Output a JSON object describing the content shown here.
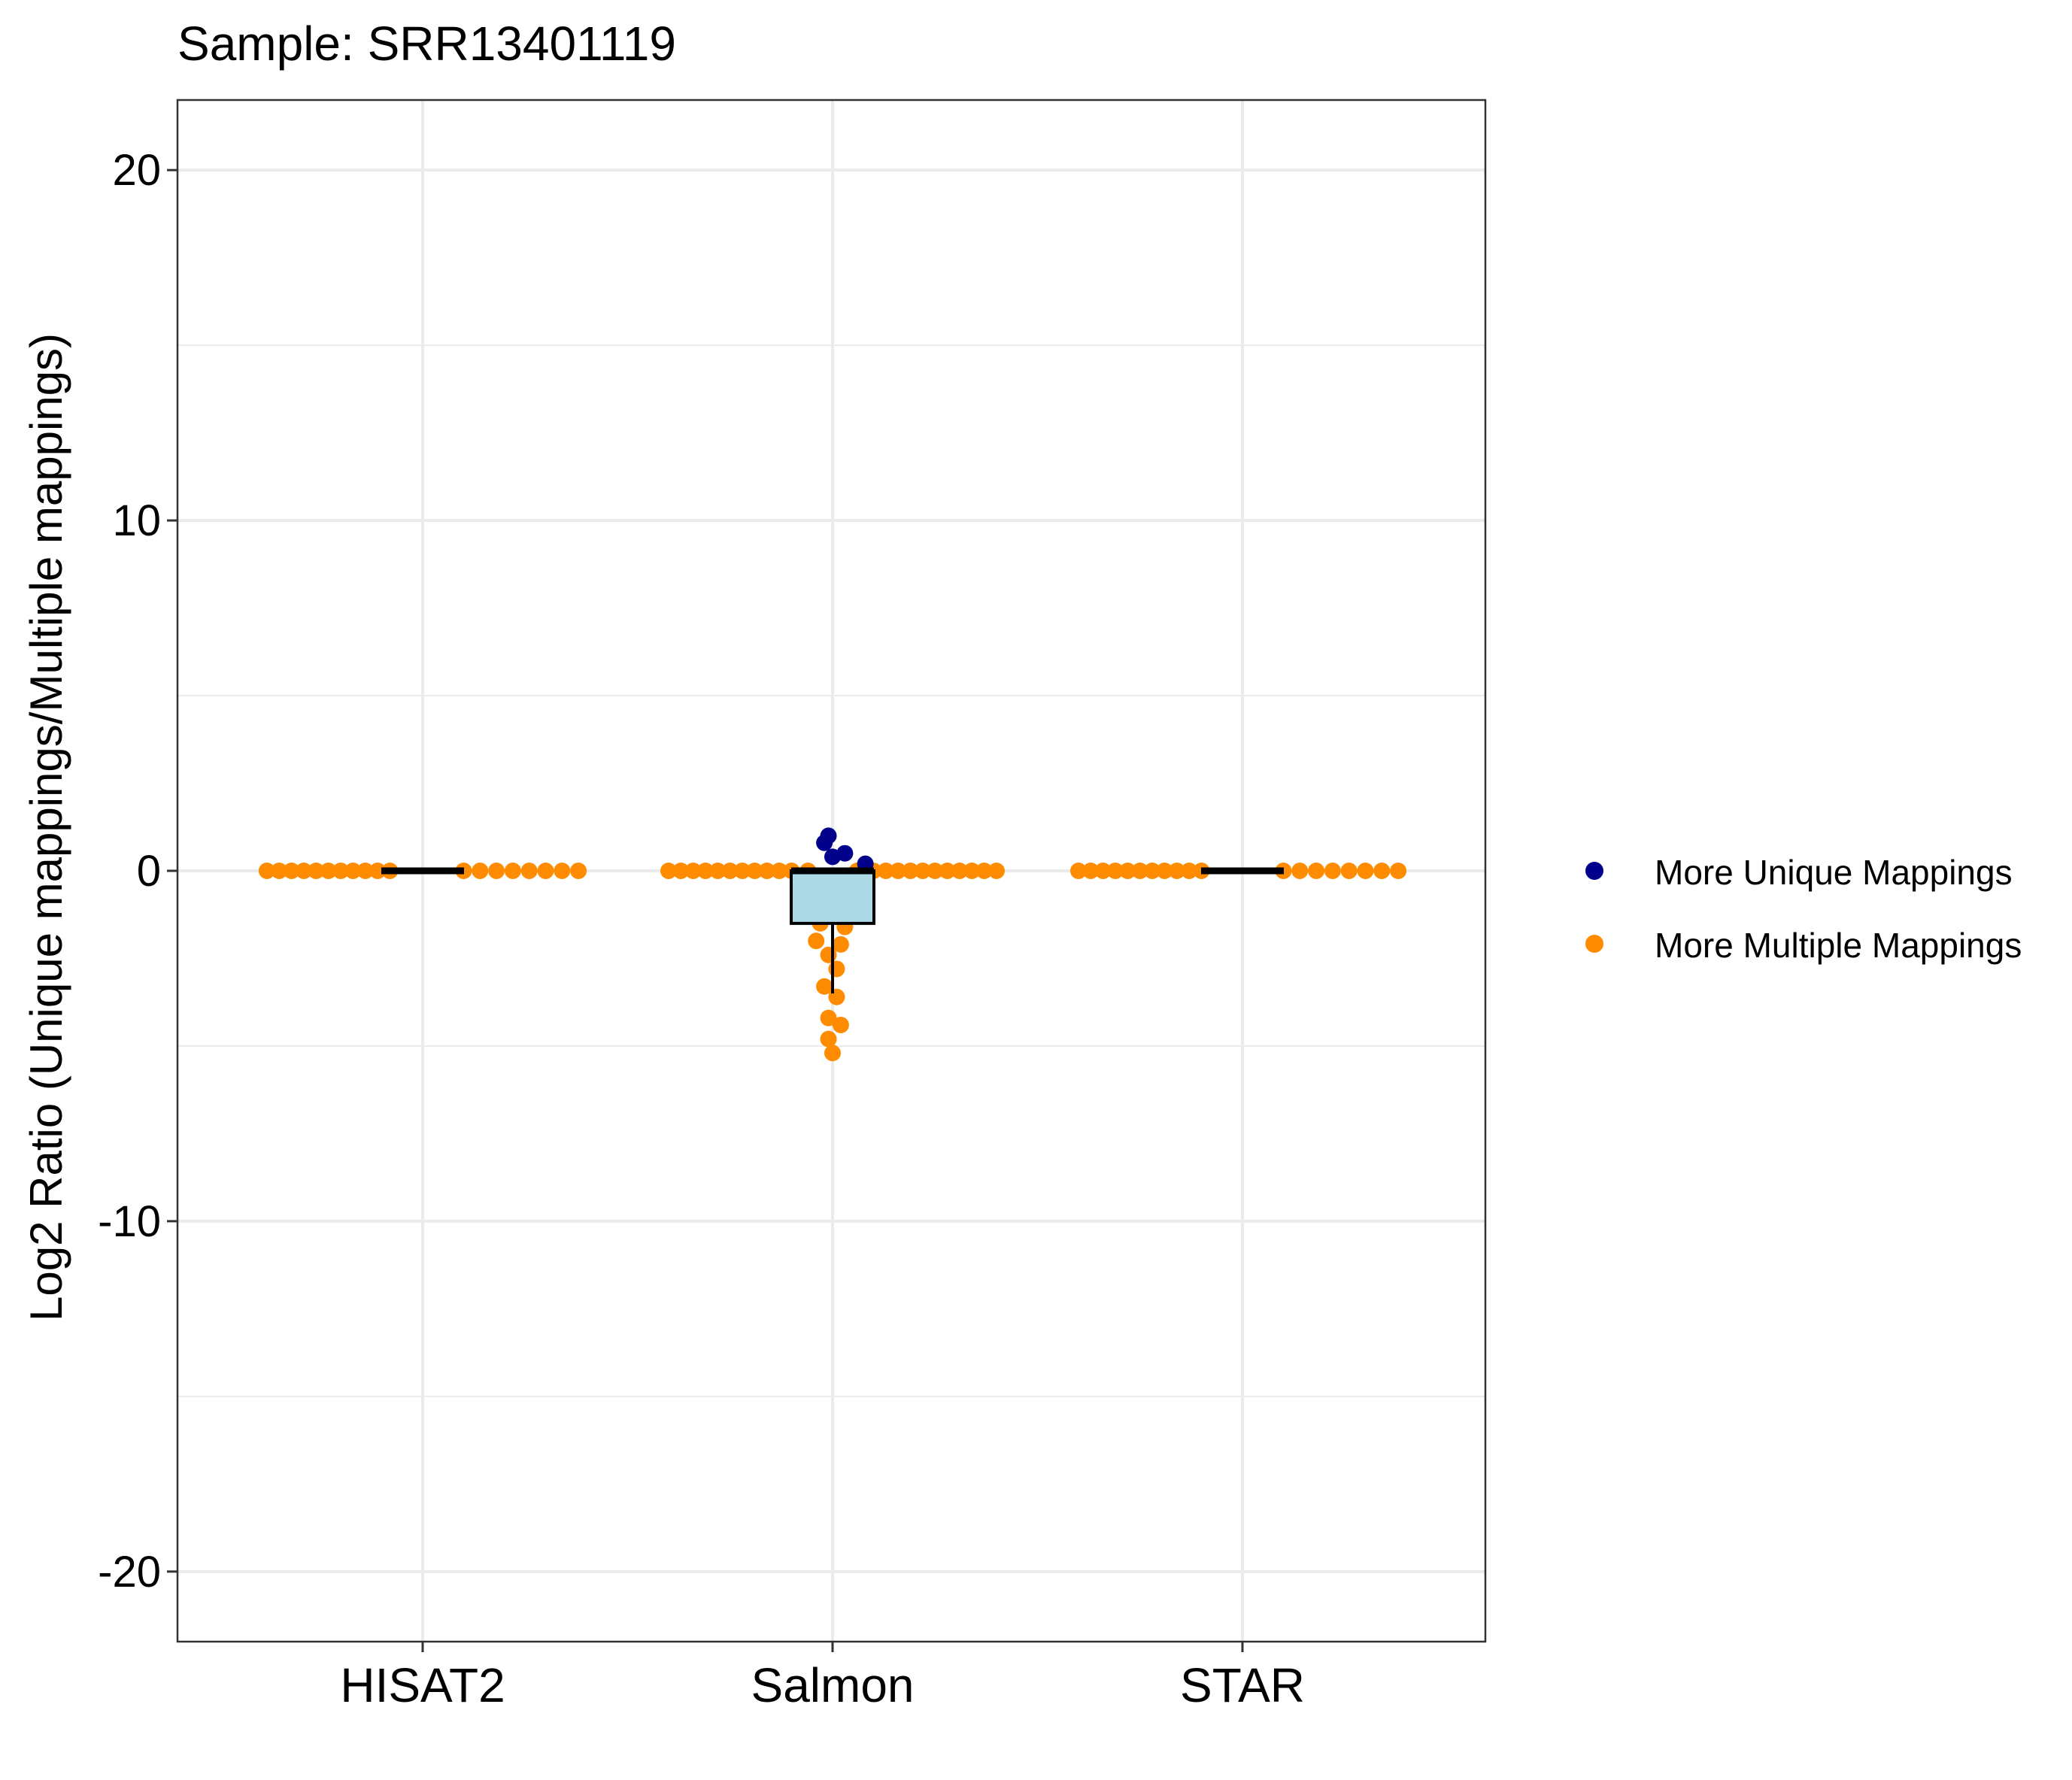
{
  "chart_data": {
    "type": "scatter",
    "title": "Sample: SRR13401119",
    "xlabel": "",
    "ylabel": "Log2 Ratio (Unique mappings/Multiple mappings)",
    "categories": [
      "HISAT2",
      "Salmon",
      "STAR"
    ],
    "ylim": [
      -22,
      22
    ],
    "yticks": [
      -20,
      -10,
      0,
      10,
      20
    ],
    "grid": true,
    "legend_position": "right",
    "colors": {
      "more_unique": "#00008B",
      "more_multiple": "#FF8C00",
      "box_fill": "#ADD8E6",
      "box_stroke": "#000000"
    },
    "legend": [
      {
        "key": "more_unique",
        "label": "More Unique Mappings"
      },
      {
        "key": "more_multiple",
        "label": "More Multiple Mappings"
      }
    ],
    "boxes": [
      {
        "category": "HISAT2",
        "q1": 0,
        "median": 0,
        "q3": 0,
        "whisker_low": 0,
        "whisker_high": 0
      },
      {
        "category": "Salmon",
        "q1": -1.5,
        "median": 0,
        "q3": 0,
        "whisker_low": -3.5,
        "whisker_high": 0
      },
      {
        "category": "STAR",
        "q1": 0,
        "median": 0,
        "q3": 0,
        "whisker_low": 0,
        "whisker_high": 0
      }
    ],
    "series": [
      {
        "key": "more_multiple",
        "points": [
          {
            "category": "HISAT2",
            "offset": -0.38,
            "y": 0
          },
          {
            "category": "HISAT2",
            "offset": -0.35,
            "y": 0
          },
          {
            "category": "HISAT2",
            "offset": -0.32,
            "y": 0
          },
          {
            "category": "HISAT2",
            "offset": -0.29,
            "y": 0
          },
          {
            "category": "HISAT2",
            "offset": -0.26,
            "y": 0
          },
          {
            "category": "HISAT2",
            "offset": -0.23,
            "y": 0
          },
          {
            "category": "HISAT2",
            "offset": -0.2,
            "y": 0
          },
          {
            "category": "HISAT2",
            "offset": -0.17,
            "y": 0
          },
          {
            "category": "HISAT2",
            "offset": -0.14,
            "y": 0
          },
          {
            "category": "HISAT2",
            "offset": -0.11,
            "y": 0
          },
          {
            "category": "HISAT2",
            "offset": -0.08,
            "y": 0
          },
          {
            "category": "HISAT2",
            "offset": 0.1,
            "y": 0
          },
          {
            "category": "HISAT2",
            "offset": 0.14,
            "y": 0
          },
          {
            "category": "HISAT2",
            "offset": 0.18,
            "y": 0
          },
          {
            "category": "HISAT2",
            "offset": 0.22,
            "y": 0
          },
          {
            "category": "HISAT2",
            "offset": 0.26,
            "y": 0
          },
          {
            "category": "HISAT2",
            "offset": 0.3,
            "y": 0
          },
          {
            "category": "HISAT2",
            "offset": 0.34,
            "y": 0
          },
          {
            "category": "HISAT2",
            "offset": 0.38,
            "y": 0
          },
          {
            "category": "Salmon",
            "offset": -0.4,
            "y": 0
          },
          {
            "category": "Salmon",
            "offset": -0.37,
            "y": 0
          },
          {
            "category": "Salmon",
            "offset": -0.34,
            "y": 0
          },
          {
            "category": "Salmon",
            "offset": -0.31,
            "y": 0
          },
          {
            "category": "Salmon",
            "offset": -0.28,
            "y": 0
          },
          {
            "category": "Salmon",
            "offset": -0.25,
            "y": 0
          },
          {
            "category": "Salmon",
            "offset": -0.22,
            "y": 0
          },
          {
            "category": "Salmon",
            "offset": -0.19,
            "y": 0
          },
          {
            "category": "Salmon",
            "offset": -0.16,
            "y": 0
          },
          {
            "category": "Salmon",
            "offset": -0.13,
            "y": 0
          },
          {
            "category": "Salmon",
            "offset": -0.1,
            "y": 0
          },
          {
            "category": "Salmon",
            "offset": -0.06,
            "y": 0
          },
          {
            "category": "Salmon",
            "offset": 0.06,
            "y": 0
          },
          {
            "category": "Salmon",
            "offset": 0.1,
            "y": 0
          },
          {
            "category": "Salmon",
            "offset": 0.13,
            "y": 0
          },
          {
            "category": "Salmon",
            "offset": 0.16,
            "y": 0
          },
          {
            "category": "Salmon",
            "offset": 0.19,
            "y": 0
          },
          {
            "category": "Salmon",
            "offset": 0.22,
            "y": 0
          },
          {
            "category": "Salmon",
            "offset": 0.25,
            "y": 0
          },
          {
            "category": "Salmon",
            "offset": 0.28,
            "y": 0
          },
          {
            "category": "Salmon",
            "offset": 0.31,
            "y": 0
          },
          {
            "category": "Salmon",
            "offset": 0.34,
            "y": 0
          },
          {
            "category": "Salmon",
            "offset": 0.37,
            "y": 0
          },
          {
            "category": "Salmon",
            "offset": 0.4,
            "y": 0
          },
          {
            "category": "Salmon",
            "offset": -0.05,
            "y": -0.3
          },
          {
            "category": "Salmon",
            "offset": 0.05,
            "y": -0.3
          },
          {
            "category": "Salmon",
            "offset": -0.04,
            "y": -0.7
          },
          {
            "category": "Salmon",
            "offset": 0.03,
            "y": -0.6
          },
          {
            "category": "Salmon",
            "offset": -0.05,
            "y": -1.0
          },
          {
            "category": "Salmon",
            "offset": 0.04,
            "y": -1.1
          },
          {
            "category": "Salmon",
            "offset": -0.03,
            "y": -1.5
          },
          {
            "category": "Salmon",
            "offset": 0.03,
            "y": -1.6
          },
          {
            "category": "Salmon",
            "offset": -0.04,
            "y": -2.0
          },
          {
            "category": "Salmon",
            "offset": 0.02,
            "y": -2.1
          },
          {
            "category": "Salmon",
            "offset": -0.01,
            "y": -2.4
          },
          {
            "category": "Salmon",
            "offset": 0.01,
            "y": -2.8
          },
          {
            "category": "Salmon",
            "offset": -0.02,
            "y": -3.3
          },
          {
            "category": "Salmon",
            "offset": 0.01,
            "y": -3.6
          },
          {
            "category": "Salmon",
            "offset": -0.01,
            "y": -4.2
          },
          {
            "category": "Salmon",
            "offset": 0.02,
            "y": -4.4
          },
          {
            "category": "Salmon",
            "offset": -0.01,
            "y": -4.8
          },
          {
            "category": "Salmon",
            "offset": 0.0,
            "y": -5.2
          },
          {
            "category": "STAR",
            "offset": -0.4,
            "y": 0
          },
          {
            "category": "STAR",
            "offset": -0.37,
            "y": 0
          },
          {
            "category": "STAR",
            "offset": -0.34,
            "y": 0
          },
          {
            "category": "STAR",
            "offset": -0.31,
            "y": 0
          },
          {
            "category": "STAR",
            "offset": -0.28,
            "y": 0
          },
          {
            "category": "STAR",
            "offset": -0.25,
            "y": 0
          },
          {
            "category": "STAR",
            "offset": -0.22,
            "y": 0
          },
          {
            "category": "STAR",
            "offset": -0.19,
            "y": 0
          },
          {
            "category": "STAR",
            "offset": -0.16,
            "y": 0
          },
          {
            "category": "STAR",
            "offset": -0.13,
            "y": 0
          },
          {
            "category": "STAR",
            "offset": -0.1,
            "y": 0
          },
          {
            "category": "STAR",
            "offset": 0.1,
            "y": 0
          },
          {
            "category": "STAR",
            "offset": 0.14,
            "y": 0
          },
          {
            "category": "STAR",
            "offset": 0.18,
            "y": 0
          },
          {
            "category": "STAR",
            "offset": 0.22,
            "y": 0
          },
          {
            "category": "STAR",
            "offset": 0.26,
            "y": 0
          },
          {
            "category": "STAR",
            "offset": 0.3,
            "y": 0
          },
          {
            "category": "STAR",
            "offset": 0.34,
            "y": 0
          },
          {
            "category": "STAR",
            "offset": 0.38,
            "y": 0
          }
        ]
      },
      {
        "key": "more_unique",
        "points": [
          {
            "category": "Salmon",
            "offset": -0.01,
            "y": 1.0
          },
          {
            "category": "Salmon",
            "offset": -0.02,
            "y": 0.8
          },
          {
            "category": "Salmon",
            "offset": 0.03,
            "y": 0.5
          },
          {
            "category": "Salmon",
            "offset": 0.0,
            "y": 0.4
          },
          {
            "category": "Salmon",
            "offset": 0.08,
            "y": 0.2
          }
        ]
      }
    ]
  }
}
